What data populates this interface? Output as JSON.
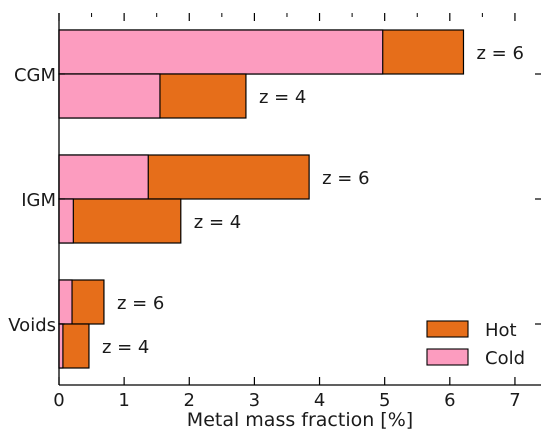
{
  "chart_data": {
    "type": "bar",
    "orientation": "horizontal",
    "stacked": true,
    "xlabel": "Metal mass fraction [%]",
    "xlim": [
      0,
      7.4
    ],
    "xticks": [
      0,
      1,
      2,
      3,
      4,
      5,
      6,
      7
    ],
    "grid": false,
    "legend_position": "bottom-right",
    "categories": [
      "CGM",
      "IGM",
      "Voids"
    ],
    "bars": [
      {
        "category": "CGM",
        "redshift_label": "z = 6",
        "cold": 4.97,
        "hot": 6.21
      },
      {
        "category": "CGM",
        "redshift_label": "z = 4",
        "cold": 1.55,
        "hot": 2.87
      },
      {
        "category": "IGM",
        "redshift_label": "z = 6",
        "cold": 1.37,
        "hot": 3.84
      },
      {
        "category": "IGM",
        "redshift_label": "z = 4",
        "cold": 0.22,
        "hot": 1.87
      },
      {
        "category": "Voids",
        "redshift_label": "z = 6",
        "cold": 0.2,
        "hot": 0.69
      },
      {
        "category": "Voids",
        "redshift_label": "z = 4",
        "cold": 0.06,
        "hot": 0.46
      }
    ],
    "series": [
      {
        "name": "Hot",
        "color": "#E66E1A"
      },
      {
        "name": "Cold",
        "color": "#FC9CBF"
      }
    ]
  }
}
